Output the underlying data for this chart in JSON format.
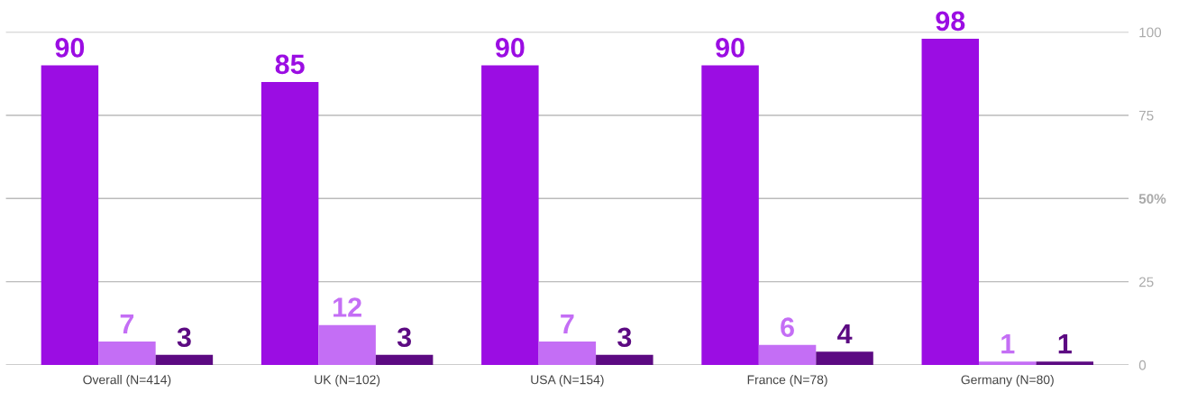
{
  "chart_data": {
    "type": "bar",
    "categories": [
      "Overall (N=414)",
      "UK (N=102)",
      "USA (N=154)",
      "France (N=78)",
      "Germany (N=80)"
    ],
    "series": [
      {
        "color": "#9b0de3",
        "values": [
          90,
          85,
          90,
          90,
          98
        ]
      },
      {
        "color": "#c46ef5",
        "values": [
          7,
          12,
          7,
          6,
          1
        ]
      },
      {
        "color": "#5c0a82",
        "values": [
          3,
          3,
          3,
          4,
          1
        ]
      }
    ],
    "ylim": [
      0,
      100
    ],
    "yticks": [
      0,
      25,
      {
        "value": 50,
        "label": "50%"
      },
      75,
      100
    ],
    "grid": "y",
    "data_labels": true
  }
}
